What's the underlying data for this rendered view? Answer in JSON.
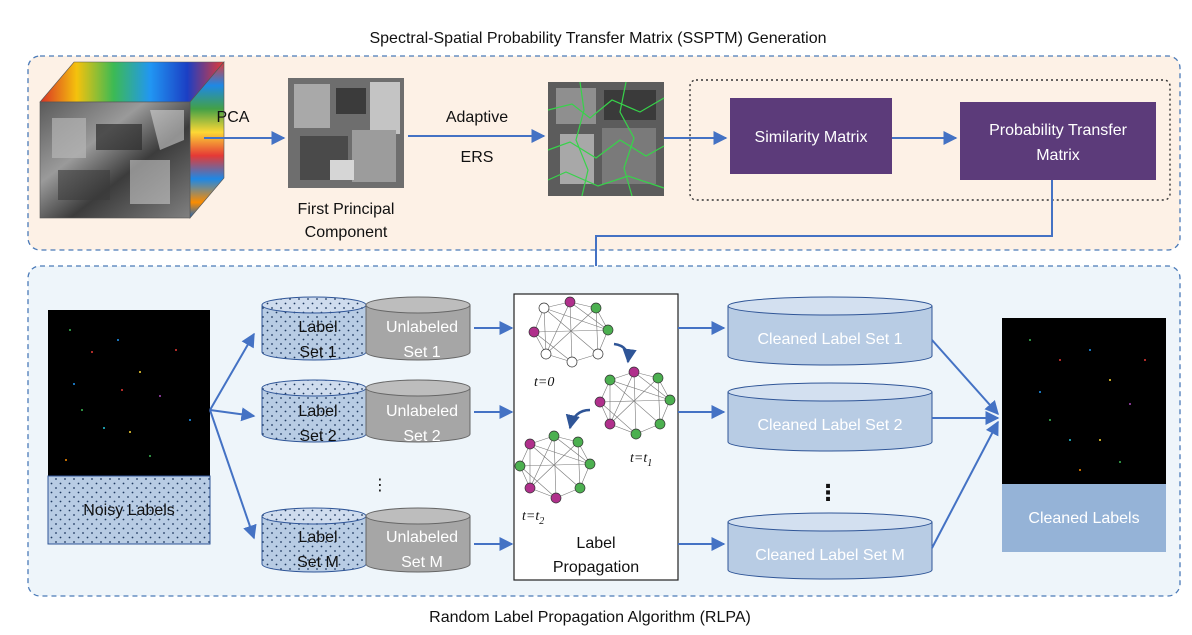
{
  "top_section": {
    "title": "Spectral-Spatial Probability Transfer Matrix (SSPTM) Generation",
    "pca_label": "PCA",
    "first_pc_label_line1": "First Principal",
    "first_pc_label_line2": "Component",
    "adaptive_label": "Adaptive",
    "ers_label": "ERS",
    "similarity_matrix": "Similarity Matrix",
    "probability_transfer_line1": "Probability Transfer",
    "probability_transfer_line2": "Matrix"
  },
  "bottom_section": {
    "title": "Random Label Propagation Algorithm (RLPA)",
    "noisy_labels": "Noisy Labels",
    "cleaned_labels": "Cleaned Labels",
    "label_sets": [
      {
        "label_line1": "Label",
        "label_line2": "Set 1",
        "unlabeled_line1": "Unlabeled",
        "unlabeled_line2": "Set 1"
      },
      {
        "label_line1": "Label",
        "label_line2": "Set 2",
        "unlabeled_line1": "Unlabeled",
        "unlabeled_line2": "Set 2"
      },
      {
        "label_line1": "Label",
        "label_line2": "Set M",
        "unlabeled_line1": "Unlabeled",
        "unlabeled_line2": "Set M"
      }
    ],
    "ellipsis": "⋮",
    "label_propagation_line1": "Label",
    "label_propagation_line2": "Propagation",
    "time_labels": {
      "t0": "t=0",
      "t1": "t=t",
      "t1_sub": "1",
      "t2": "t=t",
      "t2_sub": "2"
    },
    "cleaned_sets": [
      "Cleaned Label Set 1",
      "Cleaned Label Set 2",
      "Cleaned Label Set M"
    ]
  },
  "colors": {
    "top_bg": "#fdf1e6",
    "bottom_bg": "#eef5fa",
    "dashed_border": "#4a7ab8",
    "arrow": "#4472c4",
    "matrix_box": "#5c3b7a",
    "cylinder_blue": "#b8cce4",
    "cylinder_gray": "#a6a6a6",
    "node_green": "#4cb050",
    "node_magenta": "#b0308c",
    "cleaned_labels_box": "#95b3d7"
  }
}
